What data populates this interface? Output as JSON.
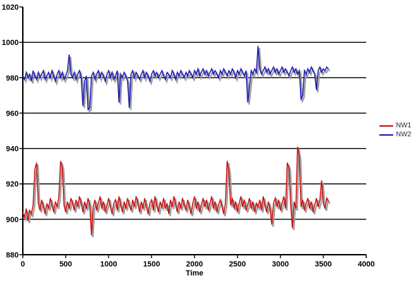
{
  "chart_data": {
    "type": "line",
    "title": "",
    "xlabel": "Time",
    "ylabel": "",
    "xlim": [
      0,
      4000
    ],
    "ylim": [
      880,
      1020
    ],
    "x_ticks": [
      0,
      500,
      1000,
      1500,
      2000,
      2500,
      3000,
      3500,
      4000
    ],
    "y_ticks": [
      880,
      900,
      920,
      940,
      960,
      980,
      1000,
      1020
    ],
    "grid": "horizontal-only",
    "legend_position": "right-middle",
    "axis_color": "#000000",
    "shadow_color": "#9e9e9e",
    "x_start": 0,
    "x_step": 20,
    "series": [
      {
        "name": "NW1",
        "color": "#cc1111",
        "values": [
          904,
          901,
          906,
          899,
          905,
          903,
          908,
          928,
          932,
          909,
          905,
          911,
          907,
          903,
          909,
          906,
          912,
          908,
          904,
          910,
          907,
          913,
          933,
          929,
          908,
          904,
          910,
          906,
          912,
          909,
          905,
          911,
          907,
          913,
          909,
          904,
          910,
          906,
          912,
          908,
          891,
          907,
          911,
          905,
          909,
          913,
          906,
          910,
          904,
          908,
          912,
          907,
          903,
          909,
          911,
          905,
          913,
          908,
          904,
          910,
          906,
          912,
          908,
          905,
          911,
          907,
          913,
          909,
          904,
          910,
          906,
          912,
          907,
          903,
          909,
          911,
          905,
          913,
          908,
          904,
          910,
          907,
          912,
          906,
          909,
          903,
          911,
          907,
          913,
          908,
          904,
          910,
          906,
          912,
          908,
          905,
          911,
          907,
          903,
          909,
          913,
          906,
          910,
          904,
          908,
          912,
          907,
          911,
          905,
          909,
          913,
          906,
          910,
          904,
          908,
          911,
          907,
          903,
          909,
          933,
          927,
          908,
          912,
          906,
          910,
          904,
          909,
          913,
          907,
          911,
          905,
          908,
          912,
          906,
          910,
          904,
          909,
          907,
          911,
          905,
          913,
          908,
          904,
          910,
          906,
          897,
          909,
          912,
          907,
          911,
          905,
          909,
          913,
          906,
          932,
          929,
          908,
          895,
          910,
          906,
          941,
          935,
          907,
          911,
          905,
          909,
          912,
          906,
          910,
          904,
          908,
          912,
          907,
          911,
          922,
          909,
          906,
          912,
          910
        ]
      },
      {
        "name": "NW2",
        "color": "#1a1ab8",
        "values": [
          981,
          979,
          983,
          980,
          982,
          978,
          984,
          981,
          979,
          983,
          980,
          982,
          984,
          979,
          981,
          983,
          980,
          984,
          981,
          978,
          982,
          984,
          980,
          983,
          979,
          981,
          984,
          993,
          982,
          980,
          983,
          979,
          982,
          984,
          980,
          964,
          978,
          981,
          962,
          963,
          981,
          983,
          979,
          982,
          984,
          980,
          983,
          981,
          978,
          982,
          984,
          980,
          983,
          979,
          981,
          984,
          966,
          982,
          980,
          983,
          981,
          978,
          963,
          982,
          984,
          980,
          983,
          981,
          979,
          982,
          984,
          980,
          983,
          981,
          978,
          982,
          984,
          981,
          983,
          980,
          982,
          984,
          981,
          979,
          983,
          982,
          980,
          984,
          982,
          979,
          983,
          981,
          984,
          982,
          980,
          983,
          981,
          984,
          982,
          980,
          984,
          982,
          985,
          981,
          983,
          985,
          982,
          984,
          981,
          983,
          985,
          982,
          984,
          982,
          980,
          984,
          982,
          985,
          983,
          981,
          984,
          982,
          985,
          983,
          980,
          984,
          982,
          985,
          983,
          981,
          984,
          966,
          975,
          984,
          982,
          985,
          983,
          998,
          985,
          982,
          984,
          986,
          983,
          985,
          982,
          984,
          986,
          983,
          985,
          982,
          984,
          986,
          983,
          985,
          983,
          981,
          984,
          986,
          983,
          985,
          982,
          984,
          968,
          970,
          984,
          982,
          985,
          983,
          986,
          984,
          982,
          973,
          984,
          986,
          983,
          985,
          984,
          986,
          985
        ]
      }
    ]
  },
  "legend": {
    "items": [
      {
        "label": "NW1",
        "color": "#cc1111"
      },
      {
        "label": "NW2",
        "color": "#1a1ab8"
      }
    ]
  }
}
